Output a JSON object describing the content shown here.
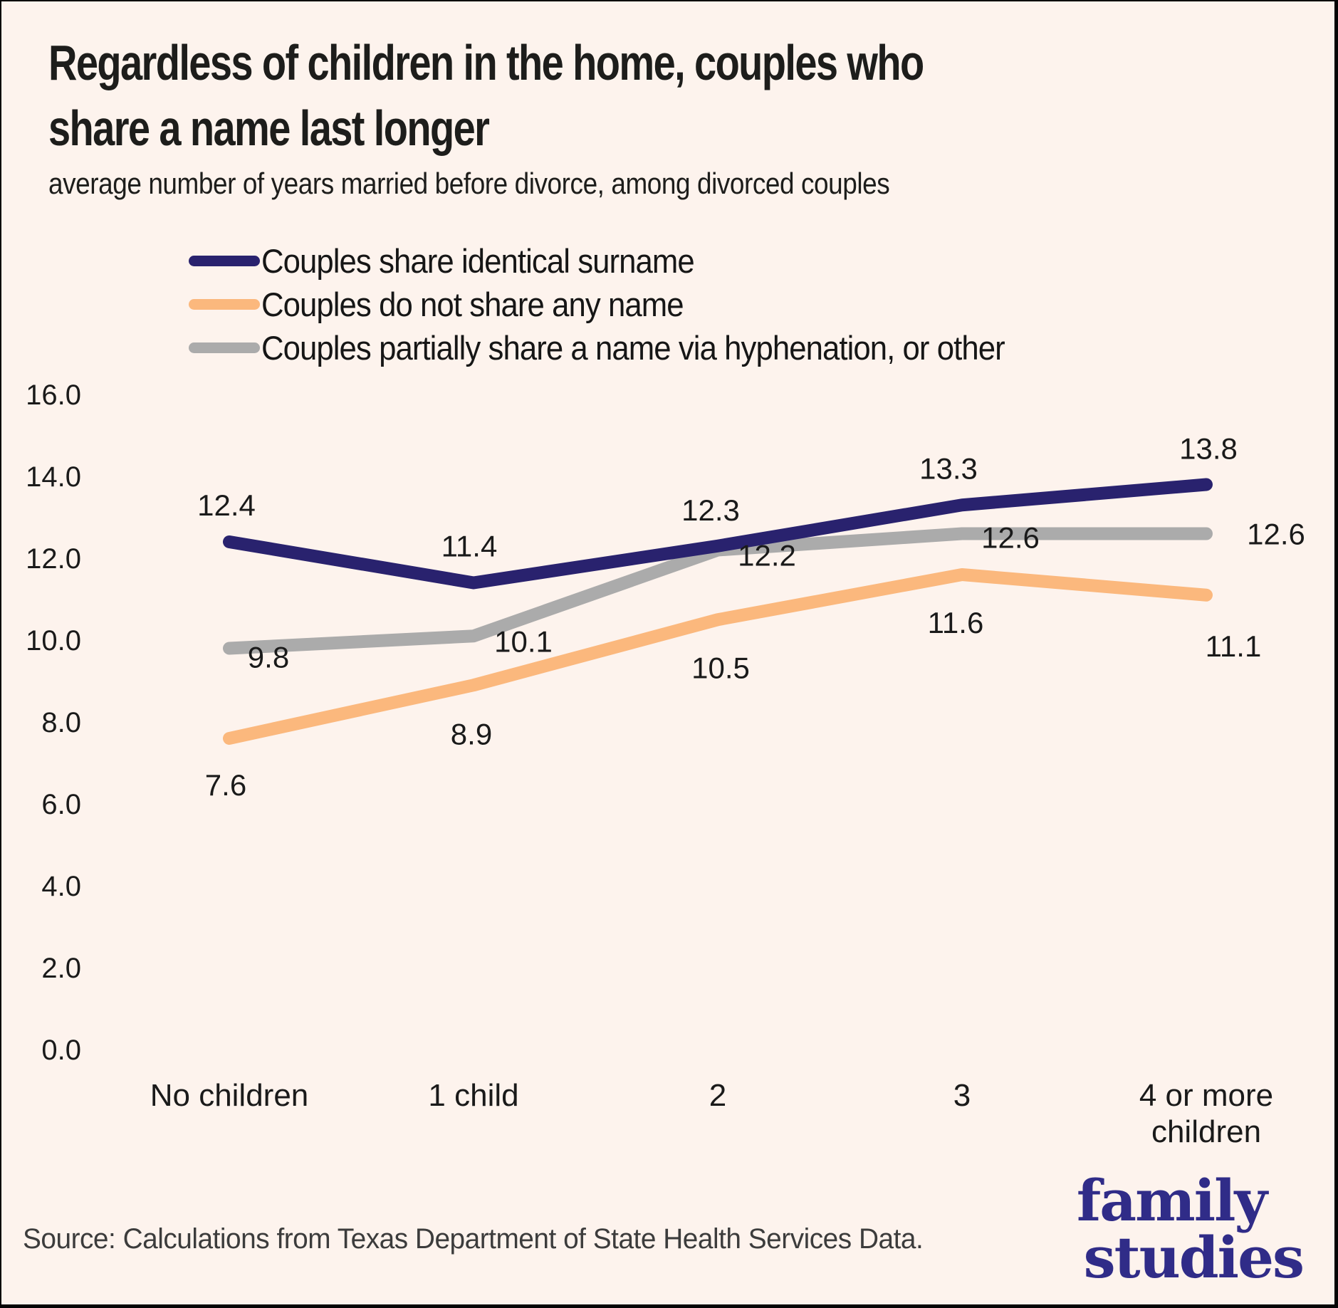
{
  "title": {
    "line1": "Regardless of children in the home, couples who",
    "line2": "share a name last longer"
  },
  "subtitle": "average number of years married before divorce, among divorced couples",
  "source": "Source: Calculations from Texas Department of State Health Services Data.",
  "logo": {
    "line1": "family",
    "line2": "studies",
    "color": "#302c88"
  },
  "colors": {
    "background": "#fdf3ed",
    "border": "#050505",
    "text": "#1a1a1a",
    "navy": "#29226e",
    "orange": "#fbb87d",
    "gray": "#ababab"
  },
  "chart_data": {
    "type": "line",
    "categories": [
      "No children",
      "1 child",
      "2",
      "3",
      "4 or more children"
    ],
    "x_label_lines": [
      [
        "No children"
      ],
      [
        "1 child"
      ],
      [
        "2"
      ],
      [
        "3"
      ],
      [
        "4 or more",
        "children"
      ]
    ],
    "series": [
      {
        "name": "Couples share identical surname",
        "color": "#29226e",
        "values": [
          12.4,
          11.4,
          12.3,
          13.3,
          13.8
        ]
      },
      {
        "name": "Couples do not share any name",
        "color": "#fbb87d",
        "values": [
          7.6,
          8.9,
          10.5,
          11.6,
          11.1
        ]
      },
      {
        "name": "Couples partially share a name via hyphenation, or other",
        "color": "#ababab",
        "values": [
          9.8,
          10.1,
          12.2,
          12.6,
          12.6
        ]
      }
    ],
    "y_axis": {
      "min": 0,
      "max": 16,
      "tick_labels": [
        "0.0",
        "2.0",
        "4.0",
        "6.0",
        "8.0",
        "10.0",
        "12.0",
        "14.0",
        "16.0"
      ]
    },
    "grid": false,
    "legend_position": "top-left",
    "value_labels": true,
    "title": "Regardless of children in the home, couples who share a name last longer",
    "xlabel": "",
    "ylabel": "average number of years married before divorce"
  }
}
